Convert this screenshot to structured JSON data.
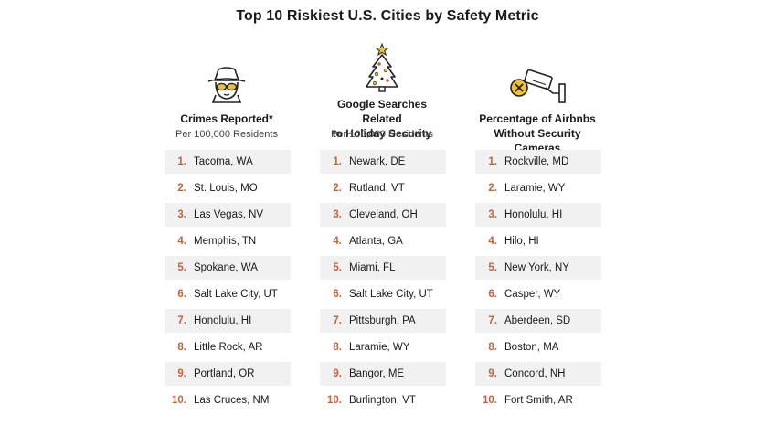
{
  "title": "Top 10 Riskiest U.S. Cities by Safety Metric",
  "accent_color": "#c0653a",
  "columns": [
    {
      "icon": "spy-icon",
      "heading_line1": "Crimes Reported*",
      "heading_line2": "",
      "subheading": "Per 100,000 Residents",
      "items": [
        {
          "rank": "1.",
          "city": "Tacoma, WA"
        },
        {
          "rank": "2.",
          "city": "St. Louis, MO"
        },
        {
          "rank": "3.",
          "city": "Las Vegas, NV"
        },
        {
          "rank": "4.",
          "city": "Memphis, TN"
        },
        {
          "rank": "5.",
          "city": "Spokane, WA"
        },
        {
          "rank": "6.",
          "city": "Salt Lake City, UT"
        },
        {
          "rank": "7.",
          "city": "Honolulu, HI"
        },
        {
          "rank": "8.",
          "city": "Little Rock, AR"
        },
        {
          "rank": "9.",
          "city": "Portland, OR"
        },
        {
          "rank": "10.",
          "city": "Las Cruces, NM"
        }
      ]
    },
    {
      "icon": "christmas-tree-icon",
      "heading_line1": "Google Searches Related",
      "heading_line2": "to Holiday Security",
      "subheading": "Per 100,000 Residents",
      "items": [
        {
          "rank": "1.",
          "city": "Newark, DE"
        },
        {
          "rank": "2.",
          "city": "Rutland, VT"
        },
        {
          "rank": "3.",
          "city": "Cleveland, OH"
        },
        {
          "rank": "4.",
          "city": "Atlanta, GA"
        },
        {
          "rank": "5.",
          "city": "Miami, FL"
        },
        {
          "rank": "6.",
          "city": "Salt Lake City, UT"
        },
        {
          "rank": "7.",
          "city": "Pittsburgh, PA"
        },
        {
          "rank": "8.",
          "city": "Laramie, WY"
        },
        {
          "rank": "9.",
          "city": "Bangor, ME"
        },
        {
          "rank": "10.",
          "city": "Burlington, VT"
        }
      ]
    },
    {
      "icon": "security-camera-icon",
      "heading_line1": "Percentage of Airbnbs",
      "heading_line2": "Without Security Cameras",
      "subheading": "",
      "items": [
        {
          "rank": "1.",
          "city": "Rockville, MD"
        },
        {
          "rank": "2.",
          "city": "Laramie, WY"
        },
        {
          "rank": "3.",
          "city": "Honolulu, HI"
        },
        {
          "rank": "4.",
          "city": "Hilo, HI"
        },
        {
          "rank": "5.",
          "city": "New York, NY"
        },
        {
          "rank": "6.",
          "city": "Casper, WY"
        },
        {
          "rank": "7.",
          "city": "Aberdeen, SD"
        },
        {
          "rank": "8.",
          "city": "Boston, MA"
        },
        {
          "rank": "9.",
          "city": "Concord, NH"
        },
        {
          "rank": "10.",
          "city": "Fort Smith, AR"
        }
      ]
    }
  ]
}
